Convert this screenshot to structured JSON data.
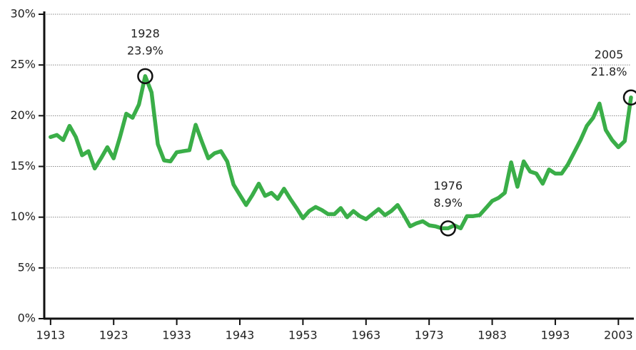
{
  "chart_data": {
    "type": "line",
    "x": [
      1913,
      1914,
      1915,
      1916,
      1917,
      1918,
      1919,
      1920,
      1921,
      1922,
      1923,
      1924,
      1925,
      1926,
      1927,
      1928,
      1929,
      1930,
      1931,
      1932,
      1933,
      1934,
      1935,
      1936,
      1937,
      1938,
      1939,
      1940,
      1941,
      1942,
      1943,
      1944,
      1945,
      1946,
      1947,
      1948,
      1949,
      1950,
      1951,
      1952,
      1953,
      1954,
      1955,
      1956,
      1957,
      1958,
      1959,
      1960,
      1961,
      1962,
      1963,
      1964,
      1965,
      1966,
      1967,
      1968,
      1969,
      1970,
      1971,
      1972,
      1973,
      1974,
      1975,
      1976,
      1977,
      1978,
      1979,
      1980,
      1981,
      1982,
      1983,
      1984,
      1985,
      1986,
      1987,
      1988,
      1989,
      1990,
      1991,
      1992,
      1993,
      1994,
      1995,
      1996,
      1997,
      1998,
      1999,
      2000,
      2001,
      2002,
      2003,
      2004,
      2005
    ],
    "series": [
      {
        "color": "#3aae48",
        "values": [
          17.9,
          18.1,
          17.6,
          19.0,
          17.9,
          16.1,
          16.5,
          14.8,
          15.8,
          16.9,
          15.8,
          17.9,
          20.2,
          19.8,
          21.1,
          23.9,
          22.3,
          17.2,
          15.6,
          15.5,
          16.4,
          16.5,
          16.6,
          19.1,
          17.4,
          15.8,
          16.3,
          16.5,
          15.5,
          13.2,
          12.2,
          11.2,
          12.2,
          13.3,
          12.1,
          12.4,
          11.8,
          12.8,
          11.8,
          10.9,
          9.9,
          10.6,
          11.0,
          10.7,
          10.3,
          10.3,
          10.9,
          10.0,
          10.6,
          10.1,
          9.8,
          10.3,
          10.8,
          10.2,
          10.6,
          11.2,
          10.2,
          9.1,
          9.4,
          9.6,
          9.2,
          9.1,
          8.9,
          8.9,
          9.2,
          8.9,
          10.1,
          10.1,
          10.2,
          10.9,
          11.6,
          11.9,
          12.4,
          15.4,
          13.0,
          15.5,
          14.5,
          14.3,
          13.3,
          14.7,
          14.3,
          14.3,
          15.2,
          16.4,
          17.6,
          19.0,
          19.8,
          21.2,
          18.6,
          17.6,
          16.9,
          17.5,
          21.8
        ]
      }
    ],
    "xlim": [
      1912,
      2005
    ],
    "xticks": [
      1913,
      1923,
      1933,
      1943,
      1953,
      1963,
      1973,
      1983,
      1993,
      2003
    ],
    "ylim": [
      0,
      30
    ],
    "yticks": [
      {
        "value": 0,
        "label": "0%"
      },
      {
        "value": 5,
        "label": "5%"
      },
      {
        "value": 10,
        "label": "10%"
      },
      {
        "value": 15,
        "label": "15%"
      },
      {
        "value": 20,
        "label": "20%"
      },
      {
        "value": 25,
        "label": "25%"
      },
      {
        "value": 30,
        "label": "30%"
      }
    ],
    "grid": true,
    "annotations": [
      {
        "x": 1928,
        "y": 23.9,
        "year": "1928",
        "label": "23.9%"
      },
      {
        "x": 1976,
        "y": 8.9,
        "year": "1976",
        "label": "8.9%"
      },
      {
        "x": 2005,
        "y": 21.8,
        "year": "2005",
        "label": "21.8%"
      }
    ]
  }
}
